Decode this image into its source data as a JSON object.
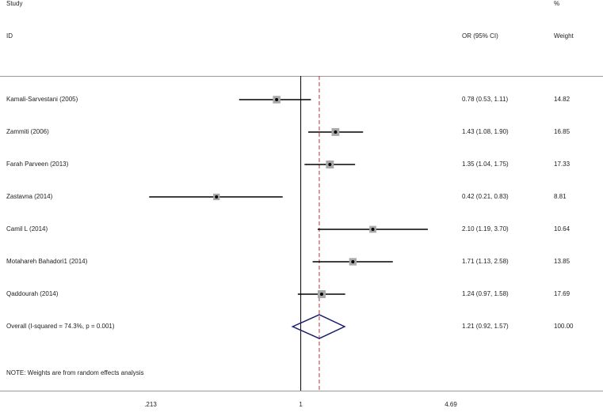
{
  "header": {
    "study_line1": "Study",
    "study_line2": "ID",
    "or_label": "OR (95% CI)",
    "weight_line1": "%",
    "weight_line2": "Weight"
  },
  "footnote": "NOTE: Weights are from random effects analysis",
  "colors": {
    "line": "#000000",
    "box": "#a8a8a8",
    "diamond": "#1c1c6e",
    "overall_line": "#b03a3a"
  },
  "chart_data": {
    "type": "forest",
    "scale": "log",
    "xlim": [
      0.213,
      4.69
    ],
    "x_ticks": [
      ".213",
      "1",
      "4.69"
    ],
    "x_tick_values": [
      0.213,
      1,
      4.69
    ],
    "null_line": 1,
    "studies": [
      {
        "label": "Kamali-Sarvestani (2005)",
        "or": 0.78,
        "lo": 0.53,
        "hi": 1.11,
        "weight": 14.82,
        "ci_text": "0.78 (0.53, 1.11)",
        "weight_text": "14.82"
      },
      {
        "label": "Zammiti (2006)",
        "or": 1.43,
        "lo": 1.08,
        "hi": 1.9,
        "weight": 16.85,
        "ci_text": "1.43 (1.08, 1.90)",
        "weight_text": "16.85"
      },
      {
        "label": "Farah Parveen (2013)",
        "or": 1.35,
        "lo": 1.04,
        "hi": 1.75,
        "weight": 17.33,
        "ci_text": "1.35 (1.04, 1.75)",
        "weight_text": "17.33"
      },
      {
        "label": "Zastavna (2014)",
        "or": 0.42,
        "lo": 0.21,
        "hi": 0.83,
        "weight": 8.81,
        "ci_text": "0.42 (0.21, 0.83)",
        "weight_text": "8.81"
      },
      {
        "label": "Camil L (2014)",
        "or": 2.1,
        "lo": 1.19,
        "hi": 3.7,
        "weight": 10.64,
        "ci_text": "2.10 (1.19, 3.70)",
        "weight_text": "10.64"
      },
      {
        "label": "Motahareh Bahadori1 (2014)",
        "or": 1.71,
        "lo": 1.13,
        "hi": 2.58,
        "weight": 13.85,
        "ci_text": "1.71 (1.13, 2.58)",
        "weight_text": "13.85"
      },
      {
        "label": "Qaddourah (2014)",
        "or": 1.24,
        "lo": 0.97,
        "hi": 1.58,
        "weight": 17.69,
        "ci_text": "1.24 (0.97, 1.58)",
        "weight_text": "17.69"
      }
    ],
    "overall": {
      "label": "Overall  (I-squared = 74.3%, p = 0.001)",
      "or": 1.21,
      "lo": 0.92,
      "hi": 1.57,
      "weight": 100.0,
      "ci_text": "1.21 (0.92, 1.57)",
      "weight_text": "100.00"
    }
  }
}
